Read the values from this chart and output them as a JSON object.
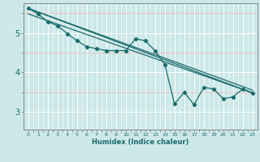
{
  "xlabel": "Humidex (Indice chaleur)",
  "ylabel": "",
  "xlim": [
    -0.5,
    23.5
  ],
  "ylim": [
    2.55,
    5.75
  ],
  "yticks": [
    3,
    4,
    5
  ],
  "xticks": [
    0,
    1,
    2,
    3,
    4,
    5,
    6,
    7,
    8,
    9,
    10,
    11,
    12,
    13,
    14,
    15,
    16,
    17,
    18,
    19,
    20,
    21,
    22,
    23
  ],
  "bg_color": "#cce8e8",
  "line_color": "#1a6b6b",
  "grid_major_color": "#ffffff",
  "grid_minor_color": "#f0c0c0",
  "series": {
    "jagged": {
      "x": [
        0,
        1,
        2,
        3,
        4,
        5,
        6,
        7,
        8,
        9,
        10,
        11,
        12,
        13,
        14,
        15,
        16,
        17,
        18,
        19,
        20,
        21,
        22,
        23
      ],
      "y": [
        5.62,
        5.48,
        5.28,
        5.18,
        4.98,
        4.8,
        4.65,
        4.6,
        4.55,
        4.55,
        4.55,
        4.85,
        4.8,
        4.55,
        4.2,
        3.2,
        3.5,
        3.18,
        3.62,
        3.58,
        3.33,
        3.38,
        3.58,
        3.48
      ]
    },
    "line1": {
      "x": [
        0,
        23
      ],
      "y": [
        5.62,
        3.48
      ]
    },
    "line2": {
      "x": [
        0,
        23
      ],
      "y": [
        5.62,
        3.55
      ]
    },
    "line3": {
      "x": [
        0,
        23
      ],
      "y": [
        5.48,
        3.48
      ]
    }
  }
}
